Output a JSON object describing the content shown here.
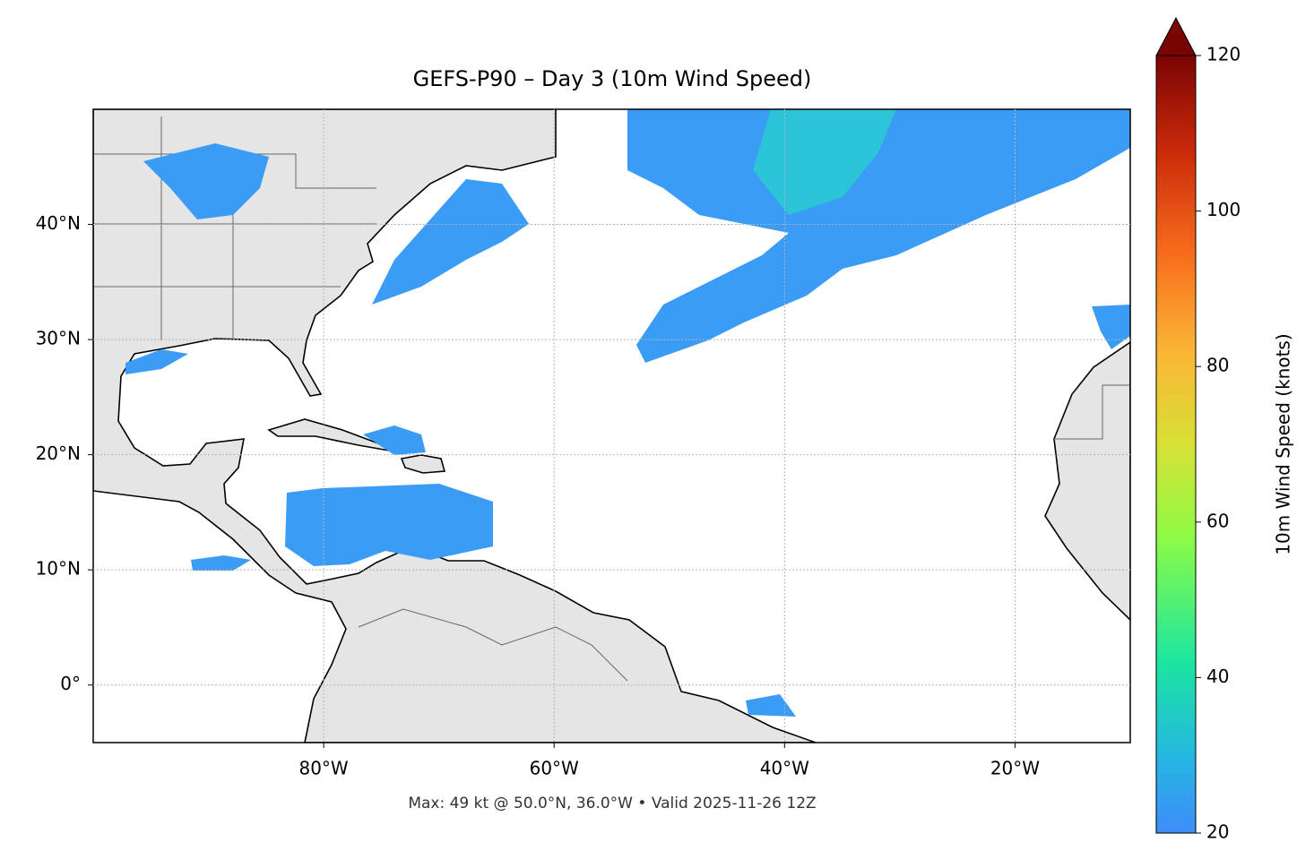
{
  "map": {
    "title": "GEFS-P90 – Day 3 (10m Wind Speed)",
    "note": "Max: 49 kt @ 50.0°N, 36.0°W • Valid 2025-11-26 12Z",
    "lonlim": [
      -100,
      -10
    ],
    "latlim": [
      -5,
      50
    ],
    "lon_ticks": [
      {
        "value": -80,
        "label": "80°W"
      },
      {
        "value": -60,
        "label": "60°W"
      },
      {
        "value": -40,
        "label": "40°W"
      },
      {
        "value": -20,
        "label": "20°W"
      }
    ],
    "lat_ticks": [
      {
        "value": 0,
        "label": "0°"
      },
      {
        "value": 10,
        "label": "10°N"
      },
      {
        "value": 20,
        "label": "20°N"
      },
      {
        "value": 30,
        "label": "30°N"
      },
      {
        "value": 40,
        "label": "40°N"
      }
    ],
    "grid": true,
    "colorbar": {
      "label": "10m Wind Speed (knots)",
      "lim": [
        20,
        120
      ],
      "ticks": [
        20,
        40,
        60,
        80,
        100,
        120
      ]
    }
  }
}
